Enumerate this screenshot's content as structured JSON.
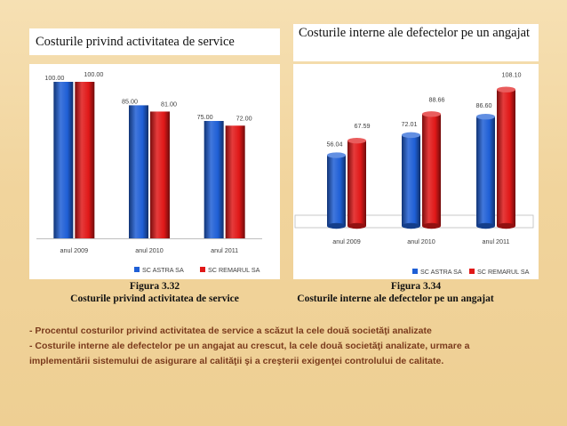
{
  "slide": {
    "title_left": "Costurile privind activitatea de service",
    "title_right": "Costurile interne ale defectelor pe un angajat",
    "caption_left_fig": "Figura  3.32",
    "caption_left_text": "Costurile privind activitatea de service",
    "caption_right_fig": "Figura 3.34",
    "caption_right_text": "Costurile interne ale defectelor pe un angajat",
    "note_1": "- Procentul costurilor privind activitatea de service a scăzut la cele două societăţi analizate",
    "note_2": "- Costurile interne ale defectelor pe un angajat au crescut, la cele două societăţi analizate, urmare a",
    "note_3": "implementării sistemului de asigurare al calităţii şi a creşterii exigenţei controlului de calitate."
  },
  "colors": {
    "series_1": "#1f5fd6",
    "series_2": "#e01818"
  },
  "chart_data": [
    {
      "type": "bar",
      "categories": [
        "anul 2009",
        "anul 2010",
        "anul 2011"
      ],
      "series": [
        {
          "name": "SC ASTRA SA",
          "values": [
            100.0,
            85.0,
            75.0
          ],
          "labels": [
            "100.00",
            "85.00",
            "75.00"
          ]
        },
        {
          "name": "SC REMARUL SA",
          "values": [
            100.0,
            81.0,
            72.0
          ],
          "labels": [
            "100.00",
            "81.00",
            "72.00"
          ]
        }
      ],
      "ylim": [
        0,
        100
      ],
      "grid": false,
      "legend": "bottom"
    },
    {
      "type": "bar",
      "categories": [
        "anul 2009",
        "anul 2010",
        "anul 2011"
      ],
      "series": [
        {
          "name": "SC ASTRA SA",
          "values": [
            56.04,
            72.01,
            86.6
          ],
          "labels": [
            "56.04",
            "72.01",
            "86.60"
          ]
        },
        {
          "name": "SC REMARUL  SA",
          "values": [
            67.59,
            88.66,
            108.1
          ],
          "labels": [
            "67.59",
            "88.66",
            "108.10"
          ]
        }
      ],
      "ylim": [
        0,
        110
      ],
      "grid": false,
      "legend": "bottom"
    }
  ]
}
